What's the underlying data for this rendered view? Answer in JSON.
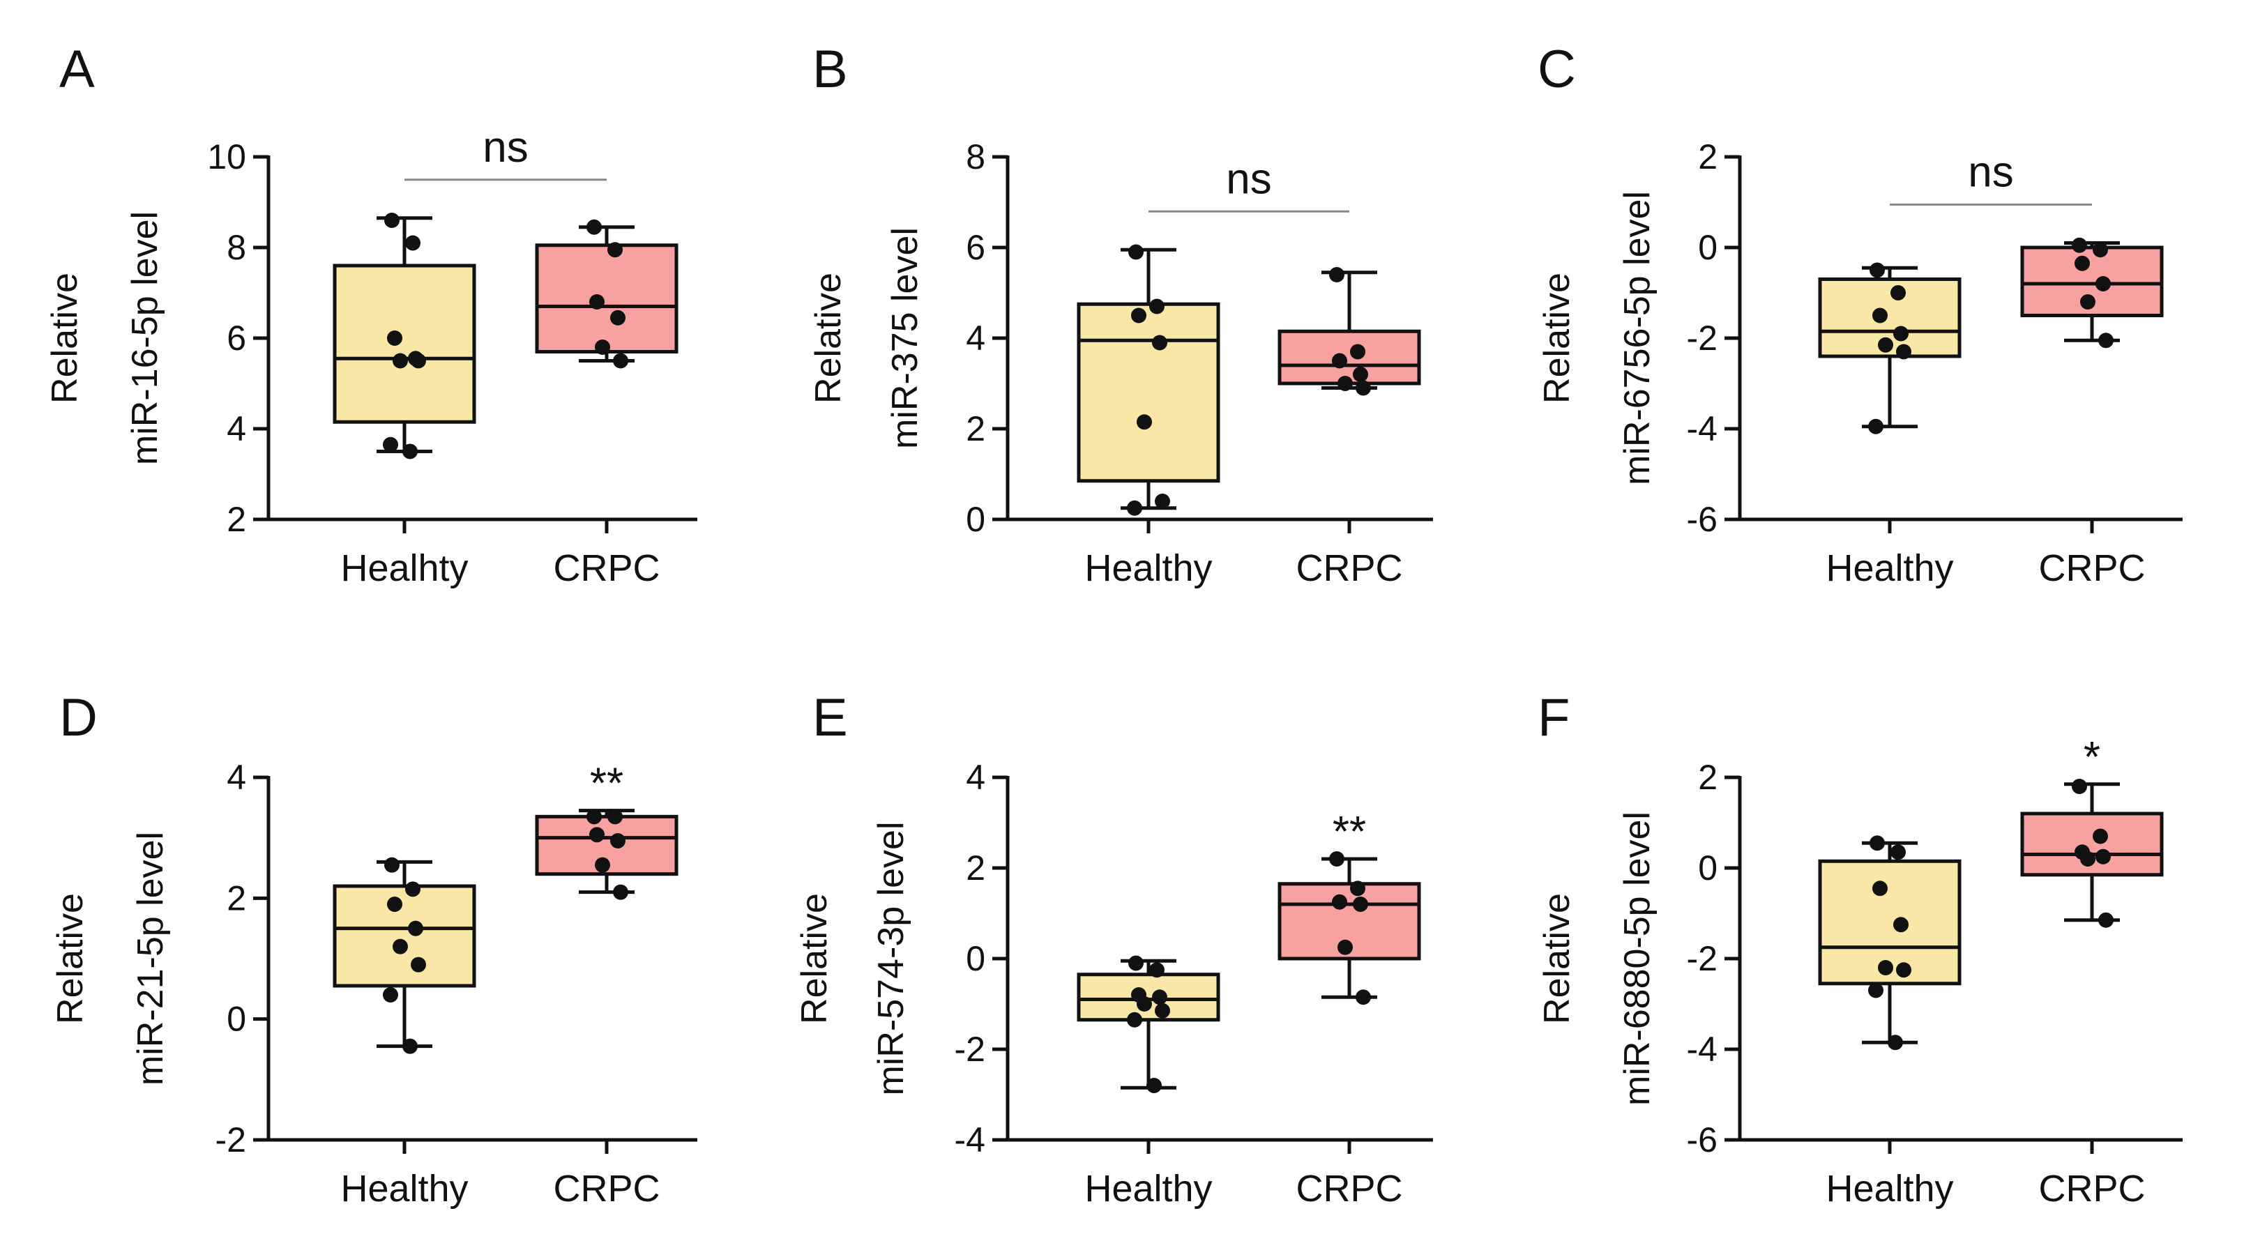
{
  "colors": {
    "healthy": "#f8e7a6",
    "crpc": "#f7a1a1",
    "ink": "#111111",
    "bracket": "#888888"
  },
  "chart_data": [
    {
      "type": "box",
      "panel": "A",
      "ylabel_line1": "Relative",
      "ylabel_line2": "miR-16-5p level",
      "ylim": [
        2,
        10
      ],
      "yticks": [
        2,
        4,
        6,
        8,
        10
      ],
      "categories": [
        "Healhty",
        "CRPC"
      ],
      "groups": [
        {
          "name": "Healhty",
          "min": 3.5,
          "q1": 4.15,
          "median": 5.55,
          "q3": 7.6,
          "max": 8.65,
          "points": [
            8.6,
            8.1,
            6.0,
            5.55,
            5.5,
            5.5,
            3.65,
            3.5
          ]
        },
        {
          "name": "CRPC",
          "min": 5.5,
          "q1": 5.7,
          "median": 6.7,
          "q3": 8.05,
          "max": 8.45,
          "points": [
            8.45,
            7.95,
            6.8,
            6.45,
            5.8,
            5.5
          ]
        }
      ],
      "annotation": "ns",
      "annotation_type": "bracket"
    },
    {
      "type": "box",
      "panel": "B",
      "ylabel_line1": "Relative",
      "ylabel_line2": "miR-375 level",
      "ylim": [
        0,
        8
      ],
      "yticks": [
        0,
        2,
        4,
        6,
        8
      ],
      "categories": [
        "Healthy",
        "CRPC"
      ],
      "groups": [
        {
          "name": "Healthy",
          "min": 0.25,
          "q1": 0.85,
          "median": 3.95,
          "q3": 4.75,
          "max": 5.95,
          "points": [
            5.9,
            4.7,
            4.5,
            3.9,
            2.15,
            0.4,
            0.25
          ]
        },
        {
          "name": "CRPC",
          "min": 2.9,
          "q1": 3.0,
          "median": 3.4,
          "q3": 4.15,
          "max": 5.45,
          "points": [
            5.4,
            3.7,
            3.5,
            3.2,
            3.0,
            2.9
          ]
        }
      ],
      "annotation": "ns",
      "annotation_type": "bracket"
    },
    {
      "type": "box",
      "panel": "C",
      "ylabel_line1": "Relative",
      "ylabel_line2": "miR-6756-5p level",
      "ylim": [
        -6,
        2
      ],
      "yticks": [
        -6,
        -4,
        -2,
        0,
        2
      ],
      "categories": [
        "Healthy",
        "CRPC"
      ],
      "groups": [
        {
          "name": "Healthy",
          "min": -3.95,
          "q1": -2.4,
          "median": -1.85,
          "q3": -0.7,
          "max": -0.45,
          "points": [
            -0.5,
            -1.0,
            -1.5,
            -1.9,
            -2.15,
            -2.3,
            -3.95
          ]
        },
        {
          "name": "CRPC",
          "min": -2.05,
          "q1": -1.5,
          "median": -0.8,
          "q3": 0.0,
          "max": 0.1,
          "points": [
            0.05,
            -0.05,
            -0.35,
            -0.8,
            -1.2,
            -2.05
          ]
        }
      ],
      "annotation": "ns",
      "annotation_type": "bracket"
    },
    {
      "type": "box",
      "panel": "D",
      "ylabel_line1": "Relative",
      "ylabel_line2": "miR-21-5p level",
      "ylim": [
        -2,
        4
      ],
      "yticks": [
        -2,
        0,
        2,
        4
      ],
      "categories": [
        "Healthy",
        "CRPC"
      ],
      "groups": [
        {
          "name": "Healthy",
          "min": -0.45,
          "q1": 0.55,
          "median": 1.5,
          "q3": 2.2,
          "max": 2.6,
          "points": [
            2.55,
            2.15,
            1.9,
            1.5,
            1.2,
            0.9,
            0.4,
            -0.45
          ]
        },
        {
          "name": "CRPC",
          "min": 2.1,
          "q1": 2.4,
          "median": 3.0,
          "q3": 3.35,
          "max": 3.45,
          "points": [
            3.35,
            3.35,
            3.05,
            2.95,
            2.55,
            2.1
          ]
        }
      ],
      "annotation": "**",
      "annotation_type": "star"
    },
    {
      "type": "box",
      "panel": "E",
      "ylabel_line1": "Relative",
      "ylabel_line2": "miR-574-3p level",
      "ylim": [
        -4,
        4
      ],
      "yticks": [
        -4,
        -2,
        0,
        2,
        4
      ],
      "categories": [
        "Healthy",
        "CRPC"
      ],
      "groups": [
        {
          "name": "Healthy",
          "min": -2.85,
          "q1": -1.35,
          "median": -0.9,
          "q3": -0.35,
          "max": -0.05,
          "points": [
            -0.1,
            -0.25,
            -0.8,
            -0.85,
            -1.0,
            -1.15,
            -1.35,
            -2.8
          ]
        },
        {
          "name": "CRPC",
          "min": -0.85,
          "q1": 0.0,
          "median": 1.2,
          "q3": 1.65,
          "max": 2.2,
          "points": [
            2.2,
            1.55,
            1.25,
            1.2,
            0.25,
            -0.85
          ]
        }
      ],
      "annotation": "**",
      "annotation_type": "star"
    },
    {
      "type": "box",
      "panel": "F",
      "ylabel_line1": "Relative",
      "ylabel_line2": "miR-6880-5p level",
      "ylim": [
        -6,
        2
      ],
      "yticks": [
        -6,
        -4,
        -2,
        0,
        2
      ],
      "categories": [
        "Healthy",
        "CRPC"
      ],
      "groups": [
        {
          "name": "Healthy",
          "min": -3.85,
          "q1": -2.55,
          "median": -1.75,
          "q3": 0.15,
          "max": 0.55,
          "points": [
            0.55,
            0.35,
            -0.45,
            -1.25,
            -2.2,
            -2.25,
            -2.7,
            -3.85
          ]
        },
        {
          "name": "CRPC",
          "min": -1.15,
          "q1": -0.15,
          "median": 0.3,
          "q3": 1.2,
          "max": 1.85,
          "points": [
            1.8,
            0.7,
            0.35,
            0.25,
            0.2,
            -1.15
          ]
        }
      ],
      "annotation": "*",
      "annotation_type": "star"
    }
  ]
}
